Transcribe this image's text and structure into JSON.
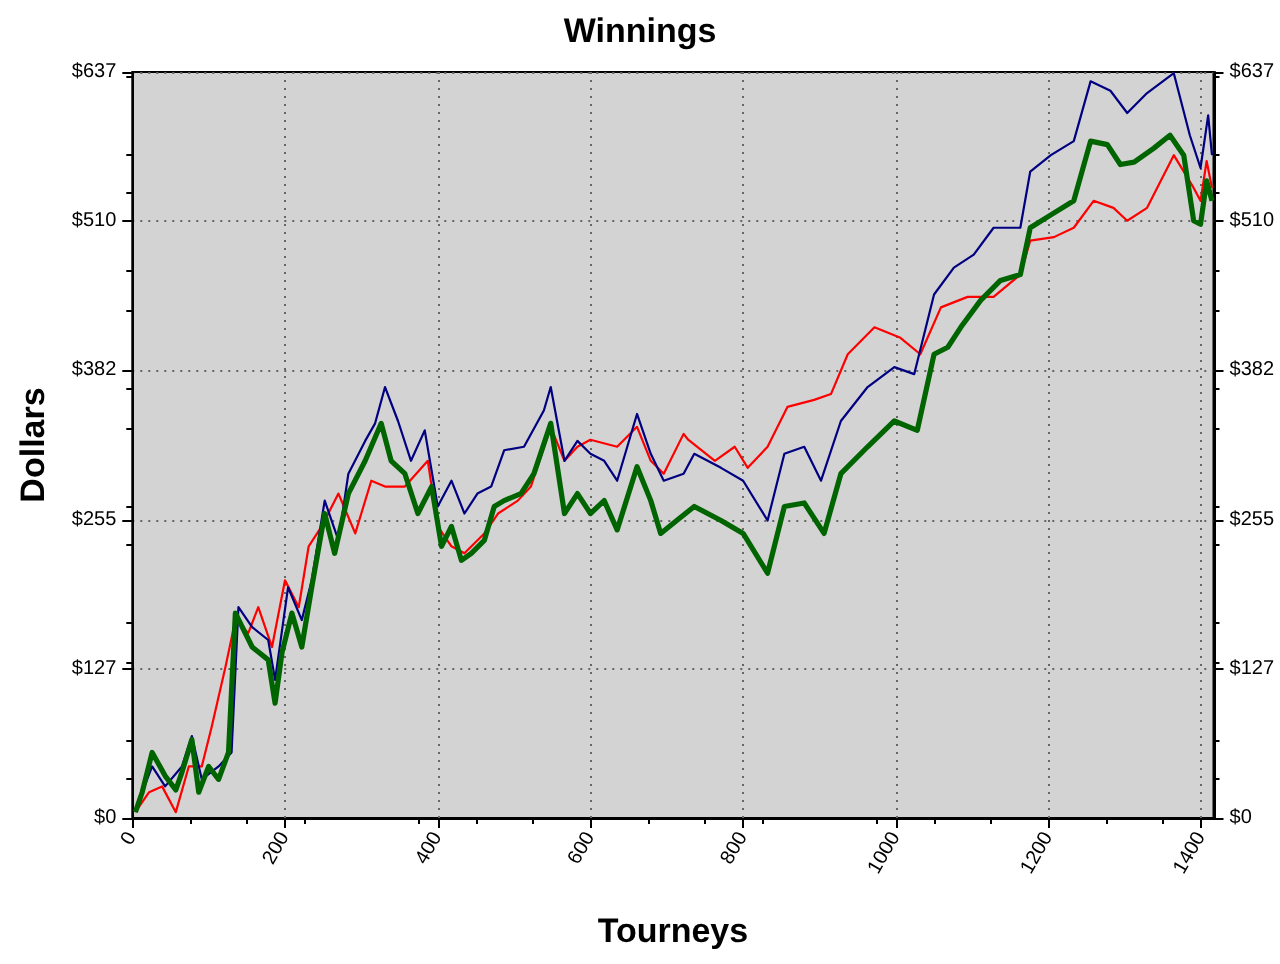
{
  "chart_data": {
    "type": "line",
    "title": "Winnings",
    "xlabel": "Tourneys",
    "ylabel": "Dollars",
    "xlim": [
      0,
      1416
    ],
    "xticks": [
      0,
      200,
      400,
      600,
      800,
      1000,
      1200,
      1400
    ],
    "ylim": [
      0,
      637
    ],
    "yticks": [
      {
        "value": 0,
        "label": "$0"
      },
      {
        "value": 127.4,
        "label": "$127"
      },
      {
        "value": 254.8,
        "label": "$255"
      },
      {
        "value": 382.2,
        "label": "$382"
      },
      {
        "value": 509.6,
        "label": "$510"
      },
      {
        "value": 637,
        "label": "$637"
      }
    ],
    "y2lim": [
      0,
      637
    ],
    "y2ticks": [
      {
        "value": 0,
        "label": "$0"
      },
      {
        "value": 127.4,
        "label": "$127"
      },
      {
        "value": 254.8,
        "label": "$255"
      },
      {
        "value": 382.2,
        "label": "$382"
      },
      {
        "value": 509.6,
        "label": "$510"
      },
      {
        "value": 637,
        "label": "$637"
      }
    ],
    "grid": true,
    "marker": "none",
    "line_style": "solid",
    "series": [
      {
        "color": "#ff0000",
        "x": [
          4,
          22,
          39,
          57,
          74,
          91,
          104,
          122,
          135,
          152,
          165,
          183,
          200,
          218,
          231,
          248,
          270,
          292,
          313,
          331,
          357,
          387,
          400,
          418,
          435,
          461,
          479,
          505,
          522,
          548,
          566,
          583,
          600,
          635,
          661,
          679,
          696,
          722,
          728,
          763,
          789,
          806,
          832,
          858,
          893,
          915,
          937,
          972,
          1006,
          1032,
          1059,
          1094,
          1128,
          1163,
          1176,
          1207,
          1233,
          1259,
          1285,
          1303,
          1329,
          1364,
          1390,
          1399,
          1407,
          1414
        ],
        "values": [
          5,
          22,
          27,
          5,
          44,
          44,
          78,
          129,
          169,
          158,
          180,
          146,
          203,
          180,
          232,
          249,
          277,
          243,
          288,
          283,
          283,
          305,
          249,
          232,
          226,
          243,
          260,
          271,
          283,
          334,
          305,
          317,
          323,
          317,
          334,
          305,
          294,
          328,
          323,
          305,
          317,
          299,
          317,
          351,
          357,
          362,
          396,
          419,
          410,
          396,
          436,
          445,
          445,
          464,
          493,
          496,
          504,
          527,
          521,
          510,
          521,
          566,
          538,
          527,
          561,
          538
        ]
      },
      {
        "color": "#000080",
        "x": [
          4,
          26,
          43,
          65,
          78,
          91,
          113,
          130,
          139,
          157,
          178,
          187,
          204,
          222,
          235,
          252,
          270,
          283,
          305,
          318,
          331,
          348,
          365,
          383,
          400,
          418,
          435,
          452,
          470,
          487,
          513,
          539,
          548,
          566,
          583,
          600,
          618,
          635,
          661,
          679,
          696,
          722,
          736,
          771,
          800,
          832,
          854,
          880,
          902,
          928,
          963,
          998,
          1024,
          1050,
          1076,
          1102,
          1128,
          1163,
          1176,
          1203,
          1233,
          1255,
          1281,
          1303,
          1329,
          1364,
          1385,
          1399,
          1409,
          1414
        ],
        "values": [
          7,
          44,
          27,
          44,
          70,
          33,
          44,
          56,
          180,
          163,
          152,
          118,
          197,
          169,
          203,
          271,
          237,
          294,
          322,
          337,
          368,
          339,
          305,
          331,
          266,
          288,
          260,
          277,
          283,
          314,
          317,
          348,
          368,
          305,
          322,
          311,
          305,
          288,
          345,
          311,
          288,
          294,
          311,
          299,
          288,
          254,
          311,
          317,
          288,
          339,
          368,
          385,
          379,
          447,
          470,
          481,
          504,
          504,
          552,
          566,
          578,
          629,
          621,
          602,
          619,
          636,
          583,
          555,
          600,
          566
        ]
      },
      {
        "color": "#006400",
        "x": [
          4,
          13,
          26,
          43,
          57,
          65,
          78,
          87,
          100,
          113,
          126,
          135,
          157,
          178,
          187,
          196,
          209,
          222,
          235,
          252,
          265,
          283,
          305,
          326,
          339,
          357,
          374,
          392,
          405,
          418,
          431,
          444,
          461,
          474,
          487,
          509,
          526,
          548,
          566,
          583,
          600,
          618,
          635,
          661,
          679,
          692,
          713,
          736,
          771,
          800,
          832,
          854,
          880,
          906,
          928,
          963,
          998,
          1028,
          1050,
          1068,
          1085,
          1111,
          1137,
          1163,
          1176,
          1203,
          1233,
          1255,
          1277,
          1294,
          1312,
          1338,
          1359,
          1377,
          1390,
          1399,
          1407,
          1414
        ],
        "values": [
          5,
          22,
          56,
          36,
          24,
          39,
          67,
          22,
          44,
          33,
          56,
          175,
          146,
          135,
          98,
          141,
          175,
          146,
          197,
          260,
          226,
          277,
          305,
          337,
          305,
          294,
          260,
          283,
          232,
          249,
          220,
          226,
          237,
          266,
          271,
          277,
          294,
          337,
          260,
          277,
          260,
          271,
          246,
          300,
          271,
          243,
          254,
          266,
          254,
          243,
          209,
          266,
          269,
          243,
          294,
          317,
          339,
          331,
          396,
          402,
          419,
          442,
          459,
          464,
          504,
          515,
          527,
          578,
          575,
          558,
          560,
          572,
          583,
          566,
          510,
          507,
          544,
          527
        ]
      }
    ]
  }
}
